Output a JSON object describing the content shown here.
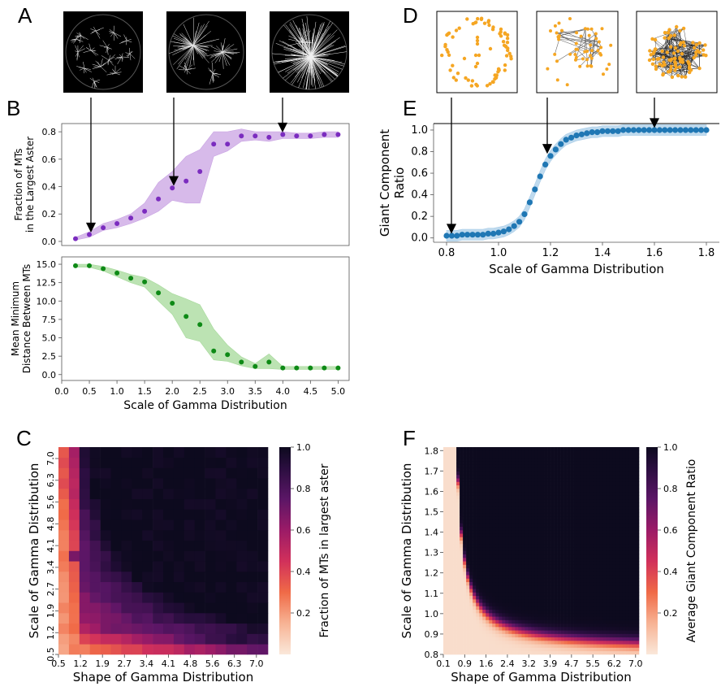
{
  "panel_letters": [
    "A",
    "B",
    "C",
    "D",
    "E",
    "F"
  ],
  "colors": {
    "purple": "#7B2CBF",
    "purple_band": "#C9A3E3",
    "green": "#0E8A16",
    "green_band": "#A6D99A",
    "blue": "#1F77B4",
    "blue_band": "#A9CDE8",
    "node_orange": "#F5A623",
    "heat_low": "#FAE3D2",
    "heat_high": "#0D0A1E"
  },
  "chart_data": [
    {
      "id": "B-top",
      "type": "scatter",
      "ylabel": "Fraction of MTs\nin the Largest Aster",
      "xlabel": "",
      "xlim": [
        0,
        5.2
      ],
      "ylim": [
        -0.03,
        0.86
      ],
      "yticks": [
        "0.0",
        "0.2",
        "0.4",
        "0.6",
        "0.8"
      ],
      "series": [
        {
          "x": [
            0.25,
            0.5,
            0.75,
            1.0,
            1.25,
            1.5,
            1.75,
            2.0,
            2.25,
            2.5,
            2.75,
            3.0,
            3.25,
            3.5,
            3.75,
            4.0,
            4.25,
            4.5,
            4.75,
            5.0
          ],
          "y": [
            0.02,
            0.05,
            0.1,
            0.13,
            0.17,
            0.22,
            0.31,
            0.39,
            0.44,
            0.51,
            0.71,
            0.71,
            0.77,
            0.77,
            0.76,
            0.78,
            0.77,
            0.77,
            0.78,
            0.78
          ],
          "lower": [
            0.01,
            0.03,
            0.08,
            0.1,
            0.13,
            0.17,
            0.22,
            0.3,
            0.28,
            0.28,
            0.62,
            0.66,
            0.73,
            0.74,
            0.73,
            0.75,
            0.75,
            0.75,
            0.76,
            0.76
          ],
          "upper": [
            0.03,
            0.07,
            0.13,
            0.16,
            0.2,
            0.28,
            0.43,
            0.51,
            0.62,
            0.67,
            0.8,
            0.8,
            0.82,
            0.8,
            0.8,
            0.8,
            0.79,
            0.79,
            0.8,
            0.8
          ]
        }
      ]
    },
    {
      "id": "B-bottom",
      "type": "scatter",
      "ylabel": "Mean Minimum\nDistance Between MTs",
      "xlabel": "Scale of Gamma Distribution",
      "xlim": [
        0,
        5.2
      ],
      "ylim": [
        -0.8,
        16
      ],
      "xticks": [
        "0.0",
        "0.5",
        "1.0",
        "1.5",
        "2.0",
        "2.5",
        "3.0",
        "3.5",
        "4.0",
        "4.5",
        "5.0"
      ],
      "yticks": [
        "0.0",
        "2.5",
        "5.0",
        "7.5",
        "10.0",
        "12.5",
        "15.0"
      ],
      "series": [
        {
          "x": [
            0.25,
            0.5,
            0.75,
            1.0,
            1.25,
            1.5,
            1.75,
            2.0,
            2.25,
            2.5,
            2.75,
            3.0,
            3.25,
            3.5,
            3.75,
            4.0,
            4.25,
            4.5,
            4.75,
            5.0
          ],
          "y": [
            14.8,
            14.8,
            14.4,
            13.8,
            13.1,
            12.6,
            11.1,
            9.7,
            7.9,
            6.8,
            3.2,
            2.7,
            1.7,
            1.1,
            1.7,
            0.9,
            0.9,
            0.9,
            0.9,
            0.9
          ],
          "lower": [
            14.6,
            14.6,
            14.1,
            13.3,
            12.5,
            11.9,
            10.0,
            8.2,
            5.0,
            4.5,
            2.0,
            1.8,
            1.2,
            0.8,
            0.8,
            0.7,
            0.7,
            0.7,
            0.7,
            0.7
          ],
          "upper": [
            15.0,
            15.0,
            14.7,
            14.2,
            13.6,
            13.2,
            12.2,
            11.0,
            10.3,
            9.5,
            6.2,
            4.0,
            2.4,
            1.5,
            2.8,
            1.1,
            1.1,
            1.1,
            1.1,
            1.1
          ]
        }
      ]
    },
    {
      "id": "E",
      "type": "scatter",
      "ylabel": "Giant Component\nRatio",
      "xlabel": "Scale of Gamma Distribution",
      "xlim": [
        0.75,
        1.85
      ],
      "ylim": [
        -0.04,
        1.06
      ],
      "xticks": [
        "0.8",
        "1.0",
        "1.2",
        "1.4",
        "1.6",
        "1.8"
      ],
      "yticks": [
        "0.0",
        "0.2",
        "0.4",
        "0.6",
        "0.8",
        "1.0"
      ],
      "series": [
        {
          "x": [
            0.8,
            0.82,
            0.84,
            0.86,
            0.88,
            0.9,
            0.92,
            0.94,
            0.96,
            0.98,
            1.0,
            1.02,
            1.04,
            1.06,
            1.08,
            1.1,
            1.12,
            1.14,
            1.16,
            1.18,
            1.2,
            1.22,
            1.24,
            1.26,
            1.28,
            1.3,
            1.32,
            1.34,
            1.36,
            1.38,
            1.4,
            1.42,
            1.44,
            1.46,
            1.48,
            1.5,
            1.52,
            1.54,
            1.56,
            1.58,
            1.6,
            1.62,
            1.64,
            1.66,
            1.68,
            1.7,
            1.72,
            1.74,
            1.76,
            1.78,
            1.8
          ],
          "y": [
            0.02,
            0.02,
            0.02,
            0.03,
            0.03,
            0.03,
            0.03,
            0.03,
            0.04,
            0.04,
            0.05,
            0.06,
            0.08,
            0.11,
            0.15,
            0.22,
            0.33,
            0.45,
            0.57,
            0.68,
            0.76,
            0.82,
            0.87,
            0.91,
            0.93,
            0.95,
            0.96,
            0.97,
            0.98,
            0.98,
            0.99,
            0.99,
            0.99,
            0.99,
            1.0,
            1.0,
            1.0,
            1.0,
            1.0,
            1.0,
            1.0,
            1.0,
            1.0,
            1.0,
            1.0,
            1.0,
            1.0,
            1.0,
            1.0,
            1.0,
            1.0
          ],
          "band": 0.05
        }
      ]
    },
    {
      "id": "C",
      "type": "heatmap",
      "ylabel": "Scale of Gamma Distribution",
      "xlabel": "Shape of Gamma Distribution",
      "colorbar_label": "Fraction of MTs in largest aster",
      "colorbar_ticks": [
        "0.2",
        "0.4",
        "0.6",
        "0.8",
        "1.0"
      ],
      "xticks": [
        "0.5",
        "1.2",
        "1.9",
        "2.7",
        "3.4",
        "4.1",
        "4.8",
        "5.6",
        "6.3",
        "7.0"
      ],
      "yticks": [
        "0.5",
        "1.2",
        "1.9",
        "2.7",
        "3.4",
        "4.1",
        "4.8",
        "5.6",
        "6.3",
        "7.0"
      ],
      "grid_size": [
        20,
        20
      ]
    },
    {
      "id": "F",
      "type": "heatmap",
      "ylabel": "Scale of Gamma Distribution",
      "xlabel": "Shape of Gamma Distribution",
      "colorbar_label": "Average Giant Component Ratio",
      "colorbar_ticks": [
        "0.2",
        "0.4",
        "0.6",
        "0.8",
        "1.0"
      ],
      "xticks": [
        "0.1",
        "0.9",
        "1.6",
        "2.4",
        "3.2",
        "3.9",
        "4.7",
        "5.5",
        "6.2",
        "7.0"
      ],
      "yticks": [
        "0.8",
        "0.9",
        "1.0",
        "1.1",
        "1.2",
        "1.3",
        "1.4",
        "1.5",
        "1.6",
        "1.7",
        "1.8"
      ],
      "grid_size": [
        60,
        60
      ]
    }
  ]
}
